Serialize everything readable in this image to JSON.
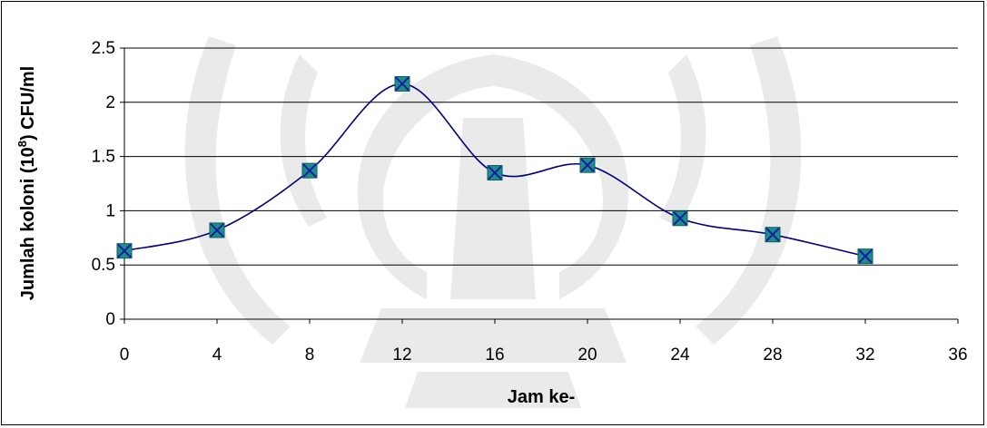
{
  "chart_data": {
    "type": "line",
    "title": "",
    "xlabel": "Jam ke-",
    "ylabel_parts": [
      "Jumlah koloni (10",
      "8",
      ") CFU/ml"
    ],
    "x_ticks": [
      "0",
      "4",
      "8",
      "12",
      "16",
      "20",
      "24",
      "28",
      "32",
      "36"
    ],
    "y_ticks": [
      "0",
      "0.5",
      "1",
      "1.5",
      "2",
      "2.5"
    ],
    "xlim": [
      0,
      36
    ],
    "ylim": [
      0,
      2.5
    ],
    "grid": "horizontal",
    "legend": "none",
    "smooth": true,
    "series": [
      {
        "x": [
          0,
          4,
          8,
          12,
          16,
          20,
          24,
          28,
          32
        ],
        "values": [
          0.63,
          0.82,
          1.37,
          2.17,
          1.35,
          1.42,
          0.93,
          0.78,
          0.58
        ],
        "line_color": "#000080",
        "marker_fill": "#1a8f8a",
        "marker_cross": "#1a1aa6"
      }
    ]
  }
}
